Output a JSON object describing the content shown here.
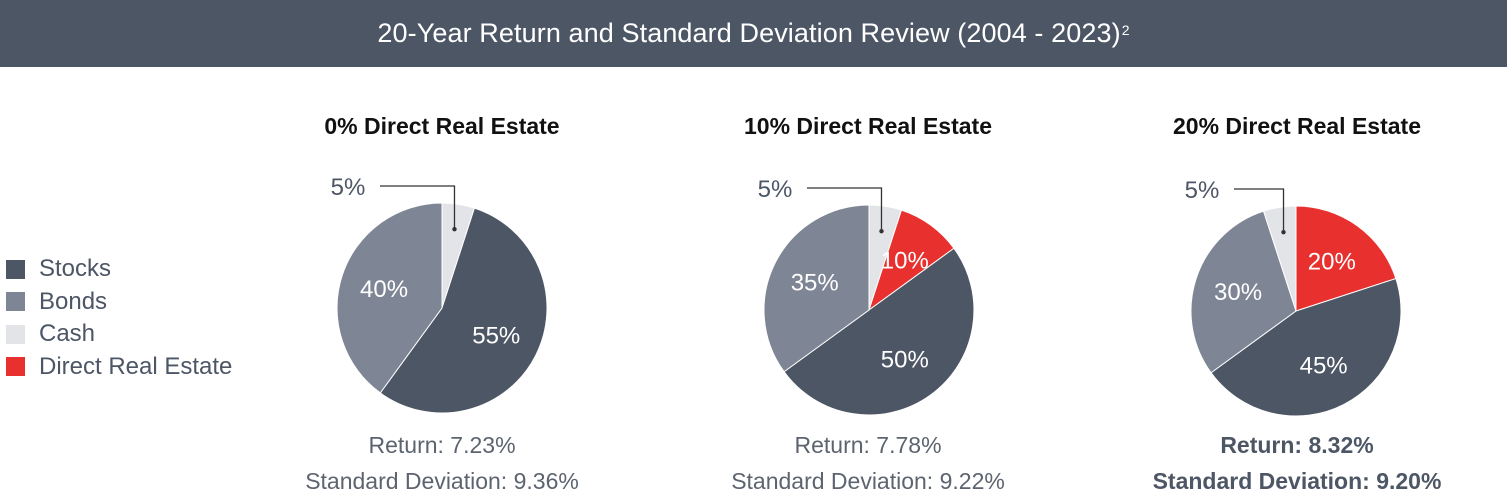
{
  "header": {
    "title": "20-Year Return and Standard Deviation Review (2004 - 2023)",
    "superscript": "2"
  },
  "legend": [
    {
      "label": "Stocks",
      "color": "#4d5665"
    },
    {
      "label": "Bonds",
      "color": "#7e8595"
    },
    {
      "label": "Cash",
      "color": "#e3e4e8"
    },
    {
      "label": "Direct Real Estate",
      "color": "#e8312e"
    }
  ],
  "chart_data": [
    {
      "type": "pie",
      "title": "0% Direct Real Estate",
      "slices": [
        {
          "name": "Cash",
          "value": 5,
          "label": "5%"
        },
        {
          "name": "Stocks",
          "value": 55,
          "label": "55%"
        },
        {
          "name": "Bonds",
          "value": 40,
          "label": "40%"
        }
      ],
      "return": "Return: 7.23%",
      "std_dev": "Standard Deviation: 9.36%",
      "highlighted": false
    },
    {
      "type": "pie",
      "title": "10% Direct Real Estate",
      "slices": [
        {
          "name": "Cash",
          "value": 5,
          "label": "5%"
        },
        {
          "name": "Direct Real Estate",
          "value": 10,
          "label": "10%"
        },
        {
          "name": "Stocks",
          "value": 50,
          "label": "50%"
        },
        {
          "name": "Bonds",
          "value": 35,
          "label": "35%"
        }
      ],
      "return": "Return: 7.78%",
      "std_dev": "Standard Deviation: 9.22%",
      "highlighted": false
    },
    {
      "type": "pie",
      "title": "20% Direct Real Estate",
      "slices": [
        {
          "name": "Direct Real Estate",
          "value": 20,
          "label": "20%"
        },
        {
          "name": "Stocks",
          "value": 45,
          "label": "45%"
        },
        {
          "name": "Bonds",
          "value": 30,
          "label": "30%"
        },
        {
          "name": "Cash",
          "value": 5,
          "label": "5%"
        }
      ],
      "return": "Return: 8.32%",
      "std_dev": "Standard Deviation: 9.20%",
      "highlighted": true
    }
  ]
}
